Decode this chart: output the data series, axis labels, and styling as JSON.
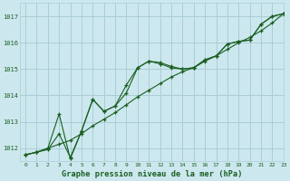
{
  "title": "Graphe pression niveau de la mer (hPa)",
  "bg_color": "#cce8ee",
  "grid_color": "#aacdd6",
  "line_color": "#1a5e20",
  "xlim": [
    -0.5,
    23
  ],
  "ylim": [
    1011.5,
    1017.5
  ],
  "yticks": [
    1012,
    1013,
    1014,
    1015,
    1016,
    1017
  ],
  "xticks": [
    0,
    1,
    2,
    3,
    4,
    5,
    6,
    7,
    8,
    9,
    10,
    11,
    12,
    13,
    14,
    15,
    16,
    17,
    18,
    19,
    20,
    21,
    22,
    23
  ],
  "line1_x": [
    0,
    1,
    2,
    3,
    4,
    5,
    6,
    7,
    8,
    9,
    10,
    11,
    12,
    13,
    14,
    15,
    16,
    17,
    18,
    19,
    20,
    21,
    22,
    23
  ],
  "line1_y": [
    1011.75,
    1011.85,
    1011.95,
    1012.55,
    1011.65,
    1012.65,
    1013.85,
    1013.4,
    1013.6,
    1014.1,
    1015.05,
    1015.3,
    1015.25,
    1015.1,
    1015.0,
    1015.05,
    1015.35,
    1015.5,
    1015.95,
    1016.05,
    1016.1,
    1016.7,
    1017.0,
    1017.1
  ],
  "line2_x": [
    0,
    1,
    2,
    3,
    4,
    5,
    6,
    7,
    8,
    9,
    10,
    11,
    12,
    13,
    14,
    15,
    16,
    17,
    18,
    19,
    20,
    21,
    22,
    23
  ],
  "line2_y": [
    1011.75,
    1011.85,
    1012.0,
    1013.3,
    1011.6,
    1012.65,
    1013.85,
    1013.4,
    1013.6,
    1014.4,
    1015.05,
    1015.3,
    1015.2,
    1015.05,
    1015.0,
    1015.05,
    1015.35,
    1015.5,
    1015.95,
    1016.05,
    1016.1,
    1016.7,
    1017.0,
    1017.1
  ],
  "line3_x": [
    0,
    1,
    2,
    3,
    4,
    5,
    6,
    7,
    8,
    9,
    10,
    11,
    12,
    13,
    14,
    15,
    16,
    17,
    18,
    19,
    20,
    21,
    22,
    23
  ],
  "line3_y": [
    1011.75,
    1011.85,
    1012.0,
    1012.15,
    1012.3,
    1012.55,
    1012.85,
    1013.1,
    1013.35,
    1013.65,
    1013.95,
    1014.2,
    1014.45,
    1014.7,
    1014.9,
    1015.05,
    1015.3,
    1015.5,
    1015.75,
    1016.0,
    1016.2,
    1016.45,
    1016.75,
    1017.1
  ]
}
